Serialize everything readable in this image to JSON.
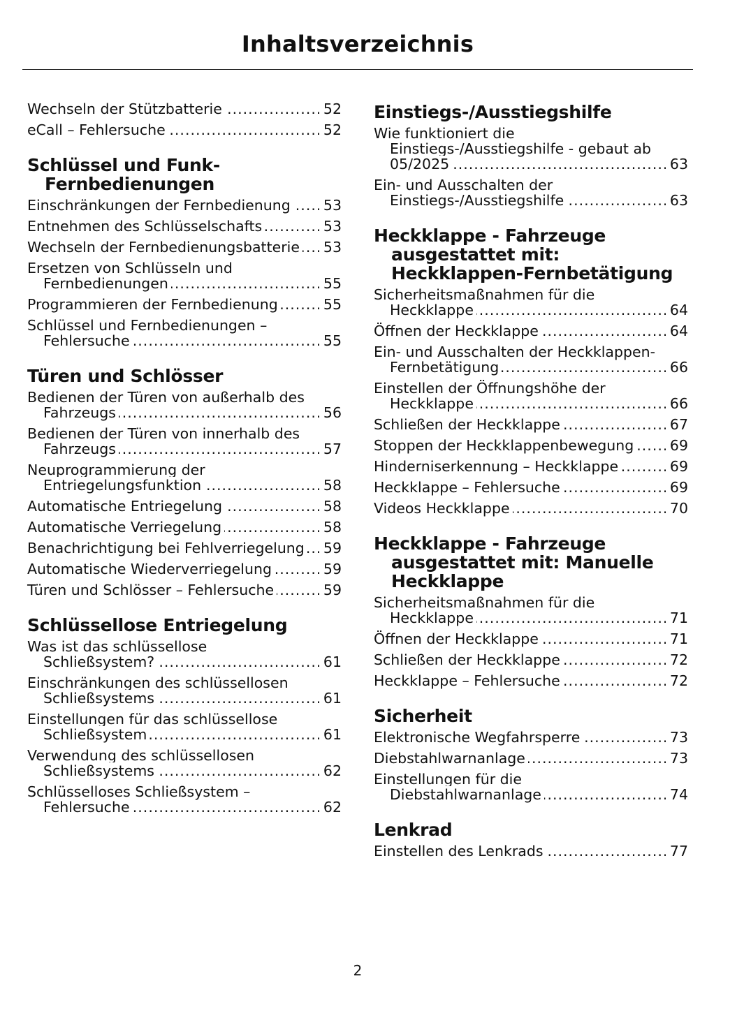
{
  "header": {
    "title": "Inhaltsverzeichnis"
  },
  "columns": [
    {
      "blocks": [
        {
          "entries": [
            {
              "title": "Wechseln der Stützbatterie",
              "page": 52
            },
            {
              "title": "eCall – Fehlersuche",
              "page": 52
            }
          ]
        },
        {
          "heading": "Schlüssel und Funk-Fernbedienungen",
          "entries": [
            {
              "title": "Einschränkungen der Fernbedienung",
              "page": 53
            },
            {
              "title": "Entnehmen des Schlüsselschafts",
              "page": 53
            },
            {
              "title": "Wechseln der Fernbedienungsbatterie",
              "page": 53
            },
            {
              "title": "Ersetzen von Schlüsseln und Fernbedienungen",
              "page": 55
            },
            {
              "title": "Programmieren der Fernbedienung",
              "page": 55
            },
            {
              "title": "Schlüssel und Fernbedienungen – Fehlersuche",
              "page": 55
            }
          ]
        },
        {
          "heading": "Türen und Schlösser",
          "entries": [
            {
              "title": "Bedienen der Türen von außerhalb des Fahrzeugs",
              "page": 56
            },
            {
              "title": "Bedienen der Türen von innerhalb des Fahrzeugs",
              "page": 57
            },
            {
              "title": "Neuprogrammierung der Entriegelungsfunktion",
              "page": 58
            },
            {
              "title": "Automatische Entriegelung",
              "page": 58
            },
            {
              "title": "Automatische Verriegelung",
              "page": 58
            },
            {
              "title": "Benachrichtigung bei Fehlverriegelung",
              "page": 59
            },
            {
              "title": "Automatische Wiederverriegelung",
              "page": 59
            },
            {
              "title": "Türen und Schlösser – Fehlersuche",
              "page": 59
            }
          ]
        },
        {
          "heading": "Schlüssellose Entriegelung",
          "entries": [
            {
              "title": "Was ist das schlüssellose Schließsystem?",
              "page": 61
            },
            {
              "title": "Einschränkungen des schlüssellosen Schließsystems",
              "page": 61
            },
            {
              "title": "Einstellungen für das schlüssellose Schließsystem",
              "page": 61
            },
            {
              "title": "Verwendung des schlüssellosen Schließsystems",
              "page": 62
            },
            {
              "title": "Schlüsselloses Schließsystem – Fehlersuche",
              "page": 62
            }
          ]
        }
      ]
    },
    {
      "blocks": [
        {
          "heading": "Einstiegs-/Ausstiegshilfe",
          "entries": [
            {
              "title": "Wie funktioniert die Einstiegs-/Ausstiegshilfe - gebaut ab 05/2025",
              "page": 63
            },
            {
              "title": "Ein- und Ausschalten der Einstiegs-/Ausstiegshilfe",
              "page": 63
            }
          ]
        },
        {
          "heading": "Heckklappe - Fahrzeuge ausgestattet mit: Heckklappen-Fernbetätigung",
          "entries": [
            {
              "title": "Sicherheitsmaßnahmen für die Heckklappe",
              "page": 64
            },
            {
              "title": "Öffnen der Heckklappe",
              "page": 64
            },
            {
              "title": "Ein- und Ausschalten der Heckklappen-Fernbetätigung",
              "page": 66
            },
            {
              "title": "Einstellen der Öffnungshöhe der Heckklappe",
              "page": 66
            },
            {
              "title": "Schließen der Heckklappe",
              "page": 67
            },
            {
              "title": "Stoppen der Heckklappenbewegung",
              "page": 69
            },
            {
              "title": "Hinderniserkennung – Heckklappe",
              "page": 69
            },
            {
              "title": "Heckklappe – Fehlersuche",
              "page": 69
            },
            {
              "title": "Videos Heckklappe",
              "page": 70
            }
          ]
        },
        {
          "heading": "Heckklappe - Fahrzeuge ausgestattet mit: Manuelle Heckklappe",
          "entries": [
            {
              "title": "Sicherheitsmaßnahmen für die Heckklappe",
              "page": 71
            },
            {
              "title": "Öffnen der Heckklappe",
              "page": 71
            },
            {
              "title": "Schließen der Heckklappe",
              "page": 72
            },
            {
              "title": "Heckklappe – Fehlersuche",
              "page": 72
            }
          ]
        },
        {
          "heading": "Sicherheit",
          "entries": [
            {
              "title": "Elektronische Wegfahrsperre",
              "page": 73
            },
            {
              "title": "Diebstahlwarnanlage",
              "page": 73
            },
            {
              "title": "Einstellungen für die Diebstahlwarnanlage",
              "page": 74
            }
          ]
        },
        {
          "heading": "Lenkrad",
          "entries": [
            {
              "title": "Einstellen des Lenkrads",
              "page": 77
            }
          ]
        }
      ]
    }
  ],
  "footer": {
    "page_number": 2
  }
}
